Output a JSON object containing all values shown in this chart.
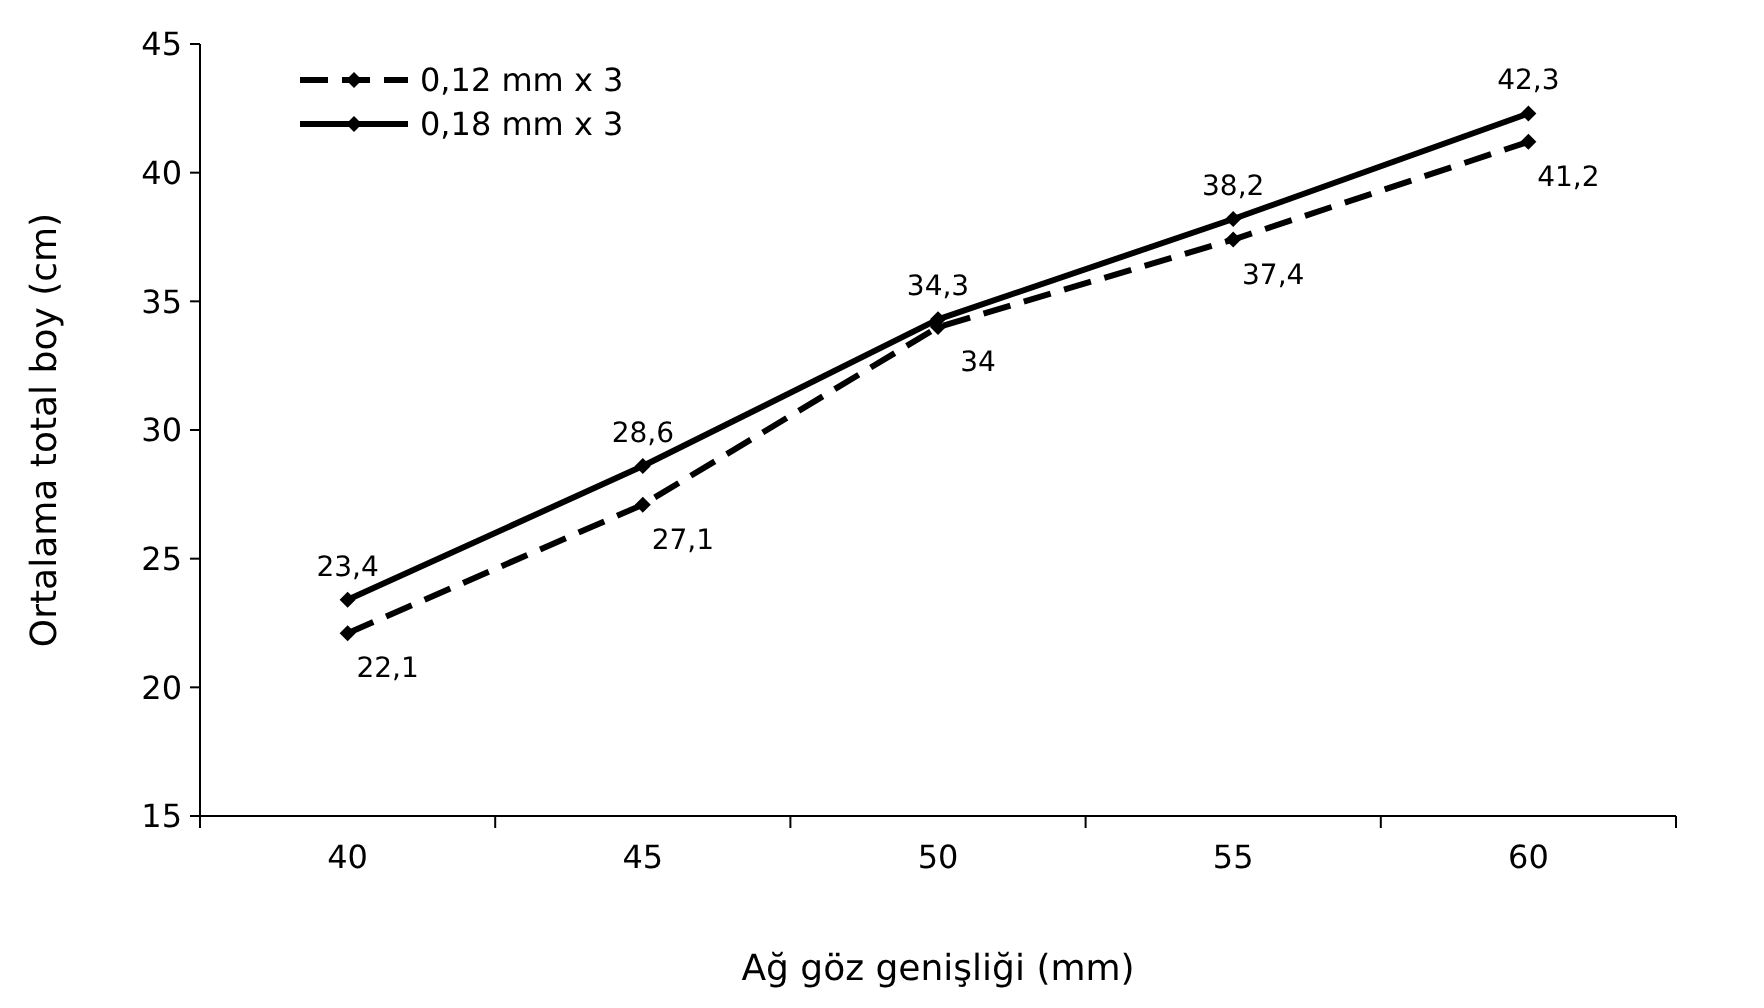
{
  "chart_data": {
    "type": "line",
    "xlabel": "Ağ göz genişliği (mm)",
    "ylabel": "Ortalama total boy (cm)",
    "categories": [
      "40",
      "45",
      "50",
      "55",
      "60"
    ],
    "series": [
      {
        "name": "0,12 mm x 3",
        "color": "#000000",
        "line_style": "dashed",
        "values": [
          22.1,
          27.1,
          34,
          37.4,
          41.2
        ],
        "value_labels": [
          "22,1",
          "27,1",
          "34",
          "37,4",
          "41,2"
        ]
      },
      {
        "name": "0,18 mm x 3",
        "color": "#000000",
        "line_style": "solid",
        "values": [
          23.4,
          28.6,
          34.3,
          38.2,
          42.3
        ],
        "value_labels": [
          "23,4",
          "28,6",
          "34,3",
          "38,2",
          "42,3"
        ]
      }
    ],
    "ylim": [
      15,
      45
    ],
    "yticks": [
      15,
      20,
      25,
      30,
      35,
      40,
      45
    ],
    "grid": false,
    "legend": "top left",
    "marker": "diamond"
  }
}
